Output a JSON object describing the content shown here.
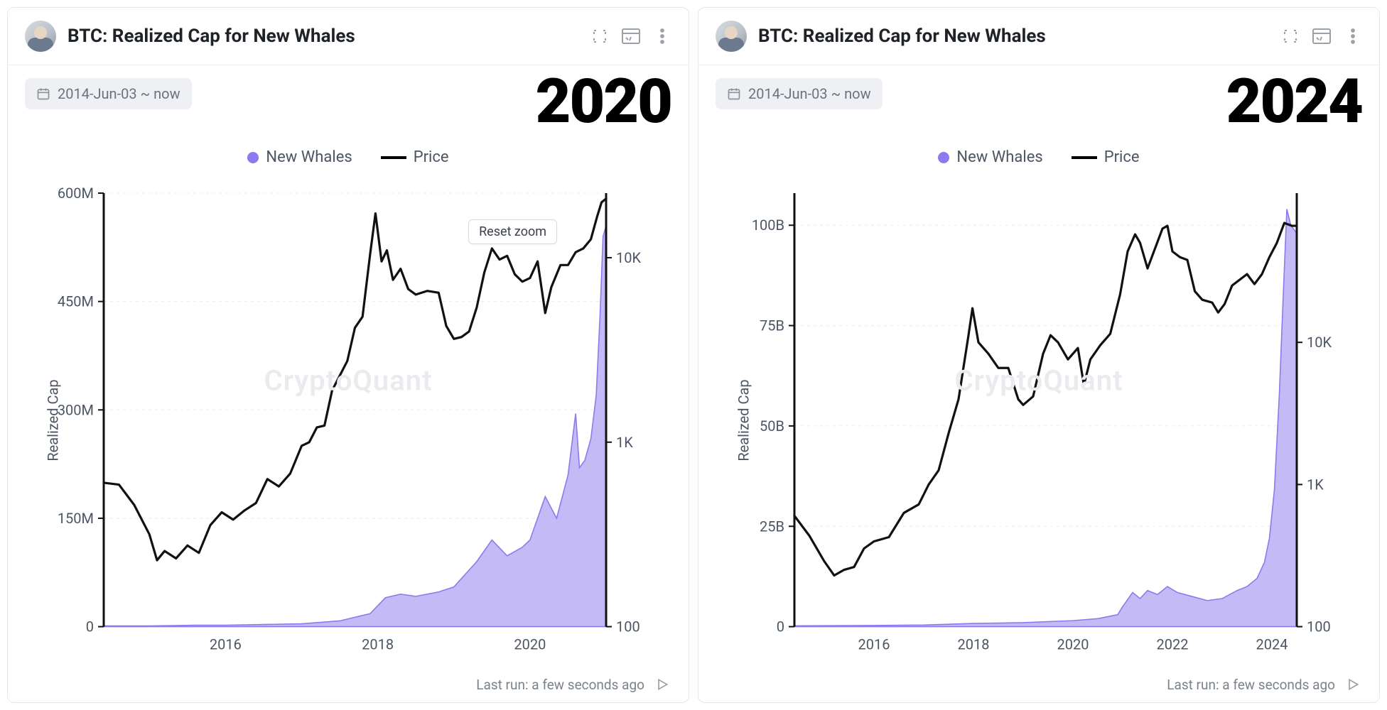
{
  "colors": {
    "area_fill": "#b0a3f2",
    "area_fill_opacity": 0.75,
    "area_stroke": "#8a7bee",
    "price_stroke": "#111111",
    "grid": "#e9ebee",
    "axis": "#111111",
    "tick_text": "#4b5563",
    "chip_bg": "#eef0f3",
    "chip_text": "#6b7280",
    "border": "#e5e7eb",
    "watermark": "#e9ebee"
  },
  "shared": {
    "title": "BTC: Realized Cap for New Whales",
    "date_range_label": "2014-Jun-03 ~ now",
    "legend": {
      "series_a": "New Whales",
      "series_b": "Price"
    },
    "y_axis_label": "Realized Cap",
    "watermark": "CryptoQuant",
    "footer_text": "Last run: a few seconds ago",
    "reset_zoom_label": "Reset zoom",
    "title_fontsize": 26,
    "tick_fontsize": 20,
    "legend_fontsize": 22,
    "year_overlay_fontsize": 86,
    "price_line_width": 3.2,
    "area_line_width": 1.6
  },
  "panels": [
    {
      "id": "p2020",
      "year_overlay": "2020",
      "show_reset_zoom": true,
      "reset_zoom_pos": {
        "right_pct": 14,
        "top_pct": 8
      },
      "left_axis": {
        "min": 0,
        "max": 600,
        "ticks": [
          0,
          150,
          300,
          450,
          600
        ],
        "tick_labels": [
          "0",
          "150M",
          "300M",
          "450M",
          "600M"
        ]
      },
      "right_axis": {
        "scale": "log",
        "ticks_log10": [
          2,
          3,
          4
        ],
        "tick_labels": [
          "100",
          "1K",
          "10K"
        ],
        "display_min_log10": 2,
        "display_max_log10": 4.35
      },
      "x_axis": {
        "min": 2014.4,
        "max": 2021.0,
        "ticks": [
          2016,
          2018,
          2020
        ],
        "tick_labels": [
          "2016",
          "2018",
          "2020"
        ]
      },
      "area_series": [
        [
          2014.4,
          1
        ],
        [
          2015.0,
          1
        ],
        [
          2015.6,
          2
        ],
        [
          2016.0,
          2
        ],
        [
          2016.5,
          3
        ],
        [
          2017.0,
          4
        ],
        [
          2017.5,
          8
        ],
        [
          2017.9,
          18
        ],
        [
          2018.1,
          40
        ],
        [
          2018.3,
          45
        ],
        [
          2018.5,
          42
        ],
        [
          2018.8,
          48
        ],
        [
          2019.0,
          55
        ],
        [
          2019.3,
          90
        ],
        [
          2019.5,
          120
        ],
        [
          2019.7,
          98
        ],
        [
          2019.9,
          110
        ],
        [
          2020.0,
          120
        ],
        [
          2020.2,
          180
        ],
        [
          2020.35,
          150
        ],
        [
          2020.5,
          210
        ],
        [
          2020.6,
          295
        ],
        [
          2020.65,
          220
        ],
        [
          2020.72,
          230
        ],
        [
          2020.8,
          260
        ],
        [
          2020.87,
          320
        ],
        [
          2020.92,
          430
        ],
        [
          2020.96,
          540
        ],
        [
          2021.0,
          555
        ]
      ],
      "price_series_log10": [
        [
          2014.4,
          2.78
        ],
        [
          2014.6,
          2.77
        ],
        [
          2014.8,
          2.66
        ],
        [
          2015.0,
          2.5
        ],
        [
          2015.1,
          2.36
        ],
        [
          2015.2,
          2.41
        ],
        [
          2015.35,
          2.37
        ],
        [
          2015.5,
          2.44
        ],
        [
          2015.65,
          2.4
        ],
        [
          2015.8,
          2.55
        ],
        [
          2015.95,
          2.62
        ],
        [
          2016.1,
          2.58
        ],
        [
          2016.25,
          2.63
        ],
        [
          2016.4,
          2.67
        ],
        [
          2016.55,
          2.8
        ],
        [
          2016.7,
          2.76
        ],
        [
          2016.85,
          2.83
        ],
        [
          2017.0,
          2.98
        ],
        [
          2017.1,
          3.0
        ],
        [
          2017.2,
          3.08
        ],
        [
          2017.3,
          3.09
        ],
        [
          2017.4,
          3.28
        ],
        [
          2017.5,
          3.36
        ],
        [
          2017.6,
          3.44
        ],
        [
          2017.7,
          3.62
        ],
        [
          2017.8,
          3.68
        ],
        [
          2017.9,
          4.02
        ],
        [
          2017.97,
          4.24
        ],
        [
          2018.05,
          3.98
        ],
        [
          2018.12,
          4.04
        ],
        [
          2018.2,
          3.88
        ],
        [
          2018.3,
          3.94
        ],
        [
          2018.4,
          3.83
        ],
        [
          2018.5,
          3.8
        ],
        [
          2018.65,
          3.82
        ],
        [
          2018.8,
          3.81
        ],
        [
          2018.9,
          3.63
        ],
        [
          2019.0,
          3.56
        ],
        [
          2019.1,
          3.57
        ],
        [
          2019.2,
          3.6
        ],
        [
          2019.3,
          3.73
        ],
        [
          2019.4,
          3.92
        ],
        [
          2019.5,
          4.05
        ],
        [
          2019.6,
          3.99
        ],
        [
          2019.7,
          4.01
        ],
        [
          2019.8,
          3.91
        ],
        [
          2019.9,
          3.87
        ],
        [
          2020.0,
          3.89
        ],
        [
          2020.1,
          3.98
        ],
        [
          2020.2,
          3.7
        ],
        [
          2020.28,
          3.84
        ],
        [
          2020.4,
          3.96
        ],
        [
          2020.5,
          3.96
        ],
        [
          2020.6,
          4.03
        ],
        [
          2020.7,
          4.05
        ],
        [
          2020.8,
          4.1
        ],
        [
          2020.88,
          4.22
        ],
        [
          2020.94,
          4.3
        ],
        [
          2021.0,
          4.32
        ]
      ]
    },
    {
      "id": "p2024",
      "year_overlay": "2024",
      "show_reset_zoom": false,
      "left_axis": {
        "min": 0,
        "max": 108,
        "ticks": [
          0,
          25,
          50,
          75,
          100
        ],
        "tick_labels": [
          "0",
          "25B",
          "50B",
          "75B",
          "100B"
        ]
      },
      "right_axis": {
        "scale": "log",
        "ticks_log10": [
          2,
          3,
          4
        ],
        "tick_labels": [
          "100",
          "1K",
          "10K"
        ],
        "display_min_log10": 2,
        "display_max_log10": 5.05
      },
      "x_axis": {
        "min": 2014.4,
        "max": 2024.5,
        "ticks": [
          2016,
          2018,
          2020,
          2022,
          2024
        ],
        "tick_labels": [
          "2016",
          "2018",
          "2020",
          "2022",
          "2024"
        ]
      },
      "area_series": [
        [
          2014.4,
          0.2
        ],
        [
          2016.0,
          0.3
        ],
        [
          2017.0,
          0.4
        ],
        [
          2018.0,
          0.8
        ],
        [
          2019.0,
          1.0
        ],
        [
          2020.0,
          1.5
        ],
        [
          2020.5,
          2.0
        ],
        [
          2020.9,
          3.0
        ],
        [
          2021.0,
          5.0
        ],
        [
          2021.2,
          8.5
        ],
        [
          2021.35,
          7.0
        ],
        [
          2021.5,
          9.0
        ],
        [
          2021.7,
          8.0
        ],
        [
          2021.9,
          10.0
        ],
        [
          2022.1,
          8.5
        ],
        [
          2022.4,
          7.5
        ],
        [
          2022.7,
          6.5
        ],
        [
          2023.0,
          7.0
        ],
        [
          2023.3,
          9.0
        ],
        [
          2023.5,
          10.0
        ],
        [
          2023.7,
          12.0
        ],
        [
          2023.85,
          16.0
        ],
        [
          2023.95,
          22.0
        ],
        [
          2024.05,
          34.0
        ],
        [
          2024.15,
          58.0
        ],
        [
          2024.22,
          80.0
        ],
        [
          2024.3,
          104.0
        ],
        [
          2024.38,
          100.0
        ],
        [
          2024.5,
          98.0
        ]
      ],
      "price_series_log10": [
        [
          2014.4,
          2.78
        ],
        [
          2014.7,
          2.64
        ],
        [
          2015.0,
          2.46
        ],
        [
          2015.2,
          2.36
        ],
        [
          2015.4,
          2.4
        ],
        [
          2015.6,
          2.42
        ],
        [
          2015.8,
          2.55
        ],
        [
          2016.0,
          2.6
        ],
        [
          2016.3,
          2.63
        ],
        [
          2016.6,
          2.8
        ],
        [
          2016.9,
          2.86
        ],
        [
          2017.1,
          3.0
        ],
        [
          2017.3,
          3.1
        ],
        [
          2017.5,
          3.36
        ],
        [
          2017.7,
          3.6
        ],
        [
          2017.9,
          4.05
        ],
        [
          2017.98,
          4.24
        ],
        [
          2018.1,
          4.0
        ],
        [
          2018.3,
          3.92
        ],
        [
          2018.5,
          3.82
        ],
        [
          2018.7,
          3.82
        ],
        [
          2018.9,
          3.6
        ],
        [
          2019.0,
          3.56
        ],
        [
          2019.2,
          3.62
        ],
        [
          2019.4,
          3.92
        ],
        [
          2019.55,
          4.05
        ],
        [
          2019.7,
          4.0
        ],
        [
          2019.9,
          3.88
        ],
        [
          2020.1,
          3.96
        ],
        [
          2020.22,
          3.7
        ],
        [
          2020.35,
          3.88
        ],
        [
          2020.55,
          3.98
        ],
        [
          2020.75,
          4.06
        ],
        [
          2020.95,
          4.34
        ],
        [
          2021.1,
          4.64
        ],
        [
          2021.25,
          4.76
        ],
        [
          2021.35,
          4.7
        ],
        [
          2021.5,
          4.52
        ],
        [
          2021.65,
          4.66
        ],
        [
          2021.8,
          4.8
        ],
        [
          2021.9,
          4.82
        ],
        [
          2022.0,
          4.64
        ],
        [
          2022.15,
          4.6
        ],
        [
          2022.3,
          4.58
        ],
        [
          2022.45,
          4.36
        ],
        [
          2022.6,
          4.3
        ],
        [
          2022.8,
          4.28
        ],
        [
          2022.92,
          4.21
        ],
        [
          2023.05,
          4.27
        ],
        [
          2023.2,
          4.4
        ],
        [
          2023.35,
          4.44
        ],
        [
          2023.5,
          4.48
        ],
        [
          2023.65,
          4.41
        ],
        [
          2023.8,
          4.48
        ],
        [
          2023.95,
          4.6
        ],
        [
          2024.1,
          4.7
        ],
        [
          2024.25,
          4.84
        ],
        [
          2024.4,
          4.82
        ],
        [
          2024.5,
          4.82
        ]
      ]
    }
  ]
}
